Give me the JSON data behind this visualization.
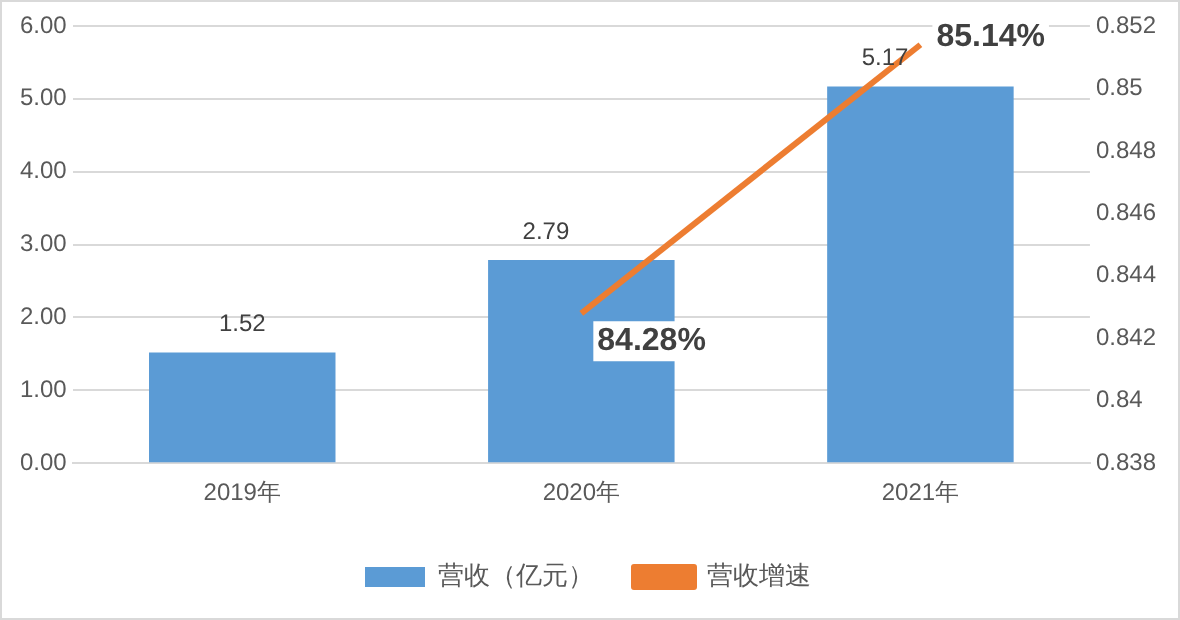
{
  "chart_data": {
    "type": "bar",
    "categories": [
      "2019年",
      "2020年",
      "2021年"
    ],
    "series": [
      {
        "name": "营收（亿元）",
        "color": "#5b9bd5",
        "values": [
          1.52,
          2.79,
          5.17
        ],
        "value_labels": [
          "1.52",
          "2.79",
          "5.17"
        ]
      },
      {
        "name": "营收增速",
        "type": "line",
        "axis": "y2",
        "color": "#ed7d31",
        "values": [
          null,
          0.8428,
          0.8514
        ],
        "value_labels": [
          null,
          "84.28%",
          "85.14%"
        ]
      }
    ],
    "ylim": [
      0,
      6
    ],
    "yticks": [
      {
        "value": 0,
        "label": "0.00"
      },
      {
        "value": 1,
        "label": "1.00"
      },
      {
        "value": 2,
        "label": "2.00"
      },
      {
        "value": 3,
        "label": "3.00"
      },
      {
        "value": 4,
        "label": "4.00"
      },
      {
        "value": 5,
        "label": "5.00"
      },
      {
        "value": 6,
        "label": "6.00"
      }
    ],
    "y2lim": [
      0.838,
      0.852
    ],
    "y2ticks": [
      0.838,
      0.84,
      0.842,
      0.844,
      0.846,
      0.848,
      0.85,
      0.852
    ],
    "grid": "y",
    "legend": "bottom",
    "marker": "none",
    "line_style": "solid"
  }
}
